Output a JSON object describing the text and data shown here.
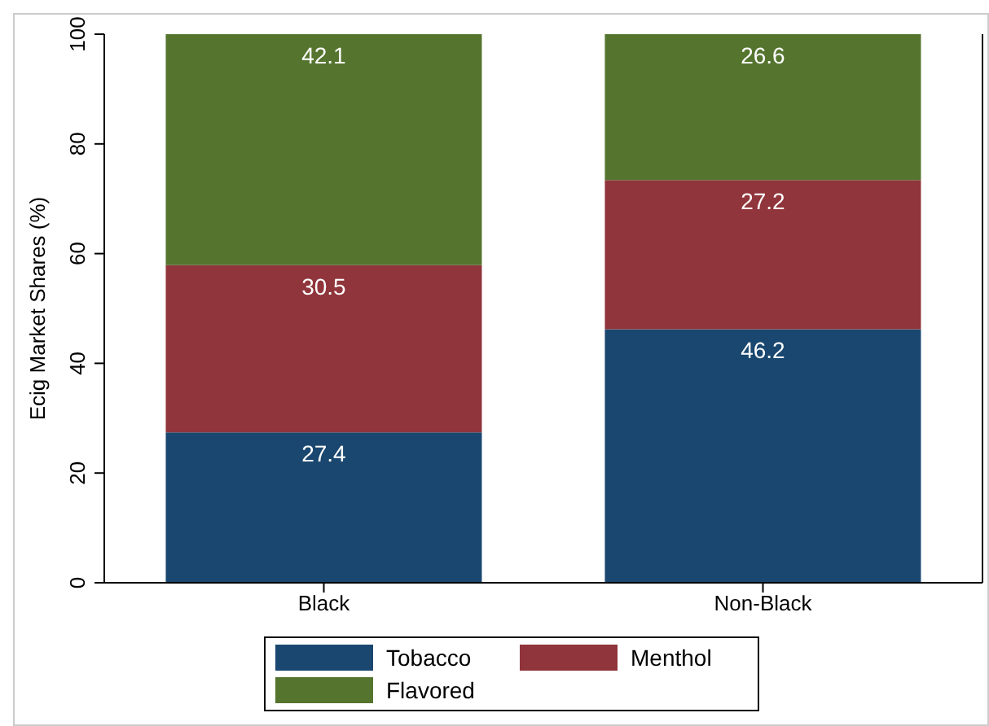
{
  "chart_data": {
    "type": "bar",
    "stacked": true,
    "ylabel": "Ecig Market Shares (%)",
    "categories": [
      "Black",
      "Non-Black"
    ],
    "series": [
      {
        "name": "Tobacco",
        "color": "#1a476f",
        "values": [
          27.4,
          46.2
        ]
      },
      {
        "name": "Menthol",
        "color": "#90353b",
        "values": [
          30.5,
          27.2
        ]
      },
      {
        "name": "Flavored",
        "color": "#55752f",
        "values": [
          42.1,
          26.6
        ]
      }
    ],
    "ylim": [
      0,
      100
    ],
    "yticks": [
      0,
      20,
      40,
      60,
      80,
      100
    ],
    "data_labels": true,
    "legend": "bottom"
  }
}
